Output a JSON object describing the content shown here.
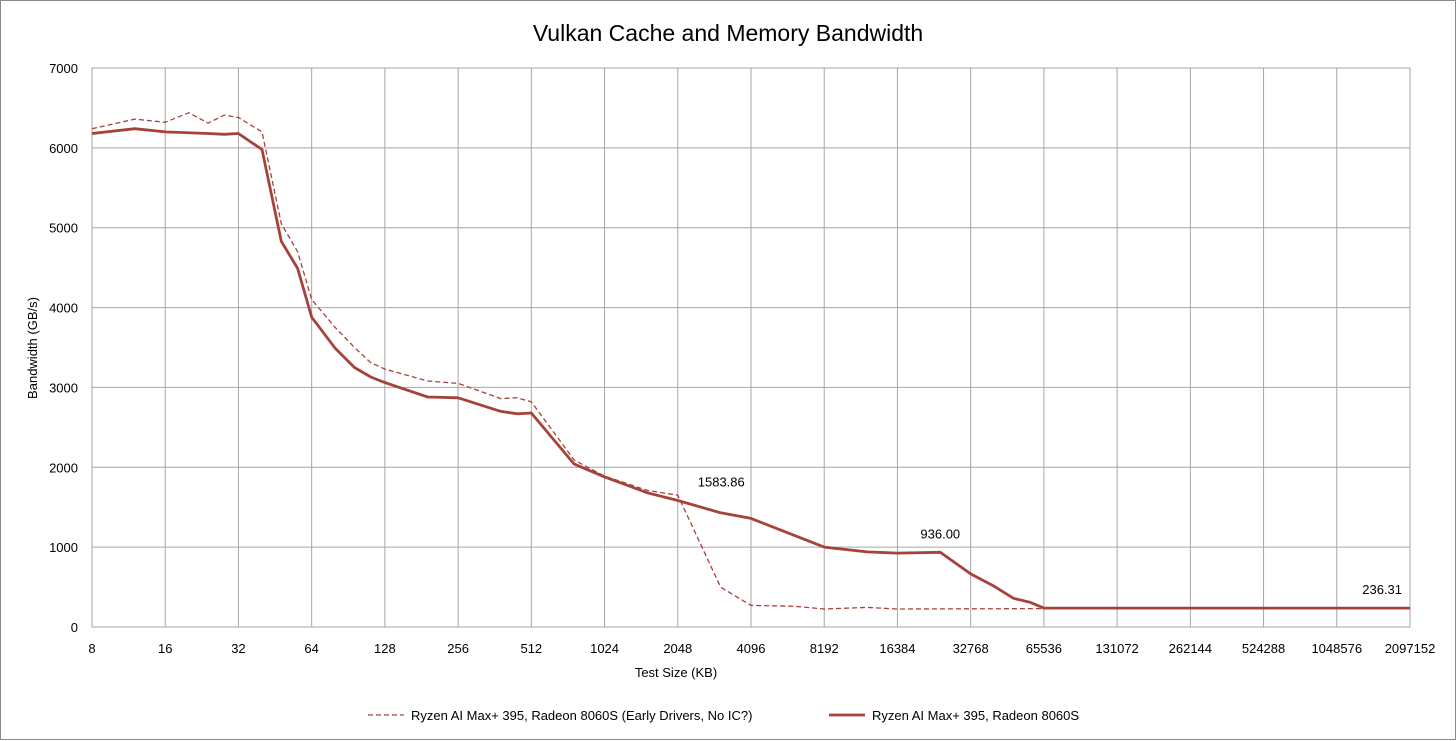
{
  "chart_data": {
    "type": "line",
    "title": "Vulkan Cache and Memory Bandwidth",
    "xlabel": "Test Size (KB)",
    "ylabel": "Bandwidth (GB/s)",
    "x_scale": "log2",
    "xlim": [
      8,
      2097152
    ],
    "ylim": [
      0,
      7000
    ],
    "grid": true,
    "legend_position": "bottom",
    "x_ticks": [
      "8",
      "16",
      "32",
      "64",
      "128",
      "256",
      "512",
      "1024",
      "2048",
      "4096",
      "8192",
      "16384",
      "32768",
      "65536",
      "131072",
      "262144",
      "524288",
      "1048576",
      "2097152"
    ],
    "y_ticks": [
      "0",
      "1000",
      "2000",
      "3000",
      "4000",
      "5000",
      "6000",
      "7000"
    ],
    "series": [
      {
        "name": "Ryzen AI Max+ 395, Radeon 8060S (Early Drivers, No IC?)",
        "color": "#a5433b",
        "style": "dashed",
        "points": [
          [
            8,
            6240
          ],
          [
            12,
            6360
          ],
          [
            16,
            6320
          ],
          [
            20,
            6440
          ],
          [
            24,
            6310
          ],
          [
            28,
            6410
          ],
          [
            32,
            6380
          ],
          [
            40,
            6200
          ],
          [
            48,
            5050
          ],
          [
            56,
            4700
          ],
          [
            64,
            4100
          ],
          [
            80,
            3750
          ],
          [
            96,
            3500
          ],
          [
            112,
            3310
          ],
          [
            128,
            3230
          ],
          [
            192,
            3080
          ],
          [
            256,
            3050
          ],
          [
            384,
            2860
          ],
          [
            448,
            2870
          ],
          [
            512,
            2820
          ],
          [
            768,
            2090
          ],
          [
            1024,
            1890
          ],
          [
            1536,
            1710
          ],
          [
            2048,
            1650
          ],
          [
            3072,
            500
          ],
          [
            4096,
            270
          ],
          [
            6144,
            260
          ],
          [
            8192,
            225
          ],
          [
            12288,
            245
          ],
          [
            16384,
            225
          ],
          [
            65536,
            230
          ],
          [
            2097152,
            230
          ]
        ]
      },
      {
        "name": "Ryzen AI Max+ 395, Radeon 8060S",
        "color": "#a5433b",
        "style": "solid",
        "points": [
          [
            8,
            6180
          ],
          [
            12,
            6240
          ],
          [
            16,
            6200
          ],
          [
            24,
            6180
          ],
          [
            28,
            6170
          ],
          [
            32,
            6180
          ],
          [
            40,
            5980
          ],
          [
            48,
            4830
          ],
          [
            56,
            4490
          ],
          [
            64,
            3880
          ],
          [
            80,
            3490
          ],
          [
            96,
            3250
          ],
          [
            112,
            3130
          ],
          [
            128,
            3060
          ],
          [
            192,
            2880
          ],
          [
            256,
            2870
          ],
          [
            384,
            2700
          ],
          [
            448,
            2670
          ],
          [
            512,
            2680
          ],
          [
            768,
            2040
          ],
          [
            1024,
            1880
          ],
          [
            1536,
            1680
          ],
          [
            2048,
            1583.86
          ],
          [
            3072,
            1430
          ],
          [
            4096,
            1360
          ],
          [
            6144,
            1150
          ],
          [
            8192,
            1000
          ],
          [
            12288,
            940
          ],
          [
            16384,
            925
          ],
          [
            24576,
            936
          ],
          [
            32768,
            665
          ],
          [
            40960,
            510
          ],
          [
            49152,
            360
          ],
          [
            57344,
            310
          ],
          [
            65536,
            236.31
          ],
          [
            131072,
            236.31
          ],
          [
            2097152,
            236.31
          ]
        ]
      }
    ],
    "annotations": [
      {
        "text": "1583.86",
        "x": 2048,
        "y": 1583.86
      },
      {
        "text": "936.00",
        "x": 24576,
        "y": 936
      },
      {
        "text": "236.31",
        "x": 2097152,
        "y": 236.31
      }
    ]
  }
}
